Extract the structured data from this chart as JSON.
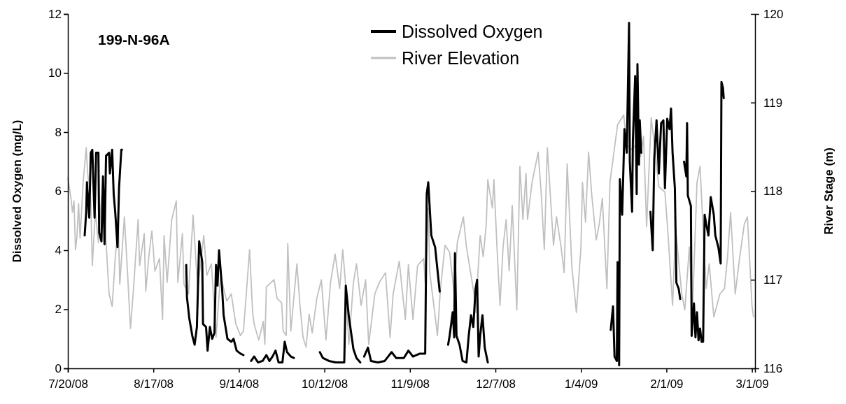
{
  "chart_data": {
    "type": "line",
    "title": "199-N-96A",
    "ylabel": "Dissolved Oxygen (mg/L)",
    "y2label": "River Stage (m)",
    "xlim": [
      "2008-07-20",
      "2009-03-02"
    ],
    "xticks": [
      {
        "value": "2008-07-20",
        "label": "7/20/08"
      },
      {
        "value": "2008-08-17",
        "label": "8/17/08"
      },
      {
        "value": "2008-09-14",
        "label": "9/14/08"
      },
      {
        "value": "2008-10-12",
        "label": "10/12/08"
      },
      {
        "value": "2008-11-09",
        "label": "11/9/08"
      },
      {
        "value": "2008-12-07",
        "label": "12/7/08"
      },
      {
        "value": "2009-01-04",
        "label": "1/4/09"
      },
      {
        "value": "2009-02-01",
        "label": "2/1/09"
      },
      {
        "value": "2009-03-01",
        "label": "3/1/09"
      }
    ],
    "ylim": [
      0,
      12
    ],
    "yticks": [
      0,
      2,
      4,
      6,
      8,
      10,
      12
    ],
    "y2lim": [
      116,
      120
    ],
    "y2ticks": [
      116,
      117,
      118,
      119,
      120
    ],
    "legend": "top",
    "grid": false,
    "series": [
      {
        "name": "River Elevation",
        "color": "#c0c0c0",
        "axis": "y2",
        "x": [
          "2008-07-20",
          "2008-07-21",
          "2008-07-21T12:00",
          "2008-07-22",
          "2008-07-22T12:00",
          "2008-07-23",
          "2008-07-23T12:00",
          "2008-07-24",
          "2008-07-25",
          "2008-07-26",
          "2008-07-26T12:00",
          "2008-07-27T12:00",
          "2008-07-28",
          "2008-07-29",
          "2008-07-30",
          "2008-07-30T12:00",
          "2008-07-31T12:00",
          "2008-08-01T12:00",
          "2008-08-02T12:00",
          "2008-08-03T12:00",
          "2008-08-04T12:00",
          "2008-08-05T12:00",
          "2008-08-06",
          "2008-08-07T12:00",
          "2008-08-08T12:00",
          "2008-08-09T12:00",
          "2008-08-10T12:00",
          "2008-08-12",
          "2008-08-12T12:00",
          "2008-08-14",
          "2008-08-14T12:00",
          "2008-08-15T12:00",
          "2008-08-16T12:00",
          "2008-08-17T12:00",
          "2008-08-19",
          "2008-08-20",
          "2008-08-20T12:00",
          "2008-08-21T12:00",
          "2008-08-23",
          "2008-08-24T12:00",
          "2008-08-25",
          "2008-08-26T12:00",
          "2008-08-27",
          "2008-08-28T12:00",
          "2008-08-30",
          "2008-08-31T12:00",
          "2008-09-02T12:00",
          "2008-09-03T12:00",
          "2008-09-05",
          "2008-09-06T12:00",
          "2008-09-08",
          "2008-09-10",
          "2008-09-11T12:00",
          "2008-09-13",
          "2008-09-14T12:00",
          "2008-09-15T12:00",
          "2008-09-17T12:00",
          "2008-09-18T12:00",
          "2008-09-19",
          "2008-09-20T12:00",
          "2008-09-22",
          "2008-09-22T12:00",
          "2008-09-23",
          "2008-09-25T12:00",
          "2008-09-26T12:00",
          "2008-09-28",
          "2008-09-28T12:00",
          "2008-09-29T12:00",
          "2008-09-30",
          "2008-10-01",
          "2008-10-03",
          "2008-10-04",
          "2008-10-05",
          "2008-10-06",
          "2008-10-07",
          "2008-10-08",
          "2008-10-09T12:00",
          "2008-10-11",
          "2008-10-12T12:00",
          "2008-10-14",
          "2008-10-15T12:00",
          "2008-10-17",
          "2008-10-18",
          "2008-10-19",
          "2008-10-20",
          "2008-10-21T12:00",
          "2008-10-22T12:00",
          "2008-10-24",
          "2008-10-25T12:00",
          "2008-10-26T12:00",
          "2008-10-28T12:00",
          "2008-10-30",
          "2008-11-01",
          "2008-11-02T12:00",
          "2008-11-03T12:00",
          "2008-11-05T12:00",
          "2008-11-07T12:00",
          "2008-11-08T12:00",
          "2008-11-10",
          "2008-11-11T12:00",
          "2008-11-13T12:00",
          "2008-11-14",
          "2008-11-15",
          "2008-11-15T12:00",
          "2008-11-17",
          "2008-11-18",
          "2008-11-19",
          "2008-11-20T12:00",
          "2008-11-22",
          "2008-11-23T12:00",
          "2008-11-24T12:00",
          "2008-11-26T12:00",
          "2008-11-27T12:00",
          "2008-11-30",
          "2008-11-30T12:00",
          "2008-12-02",
          "2008-12-03",
          "2008-12-04",
          "2008-12-04T12:00",
          "2008-12-06",
          "2008-12-06T12:00",
          "2008-12-07T12:00",
          "2008-12-08T12:00",
          "2008-12-09T12:00",
          "2008-12-10T12:00",
          "2008-12-11T12:00",
          "2008-12-12T12:00",
          "2008-12-14",
          "2008-12-15",
          "2008-12-16",
          "2008-12-17",
          "2008-12-17T12:00",
          "2008-12-19",
          "2008-12-21",
          "2008-12-22",
          "2008-12-23",
          "2008-12-24",
          "2008-12-26",
          "2008-12-27",
          "2008-12-28T12:00",
          "2008-12-29T12:00",
          "2008-12-30T12:00",
          "2009-01-01",
          "2009-01-02T12:00",
          "2009-01-04",
          "2009-01-04T12:00",
          "2009-01-05T12:00",
          "2009-01-06T12:00",
          "2009-01-07T12:00",
          "2009-01-09",
          "2009-01-10",
          "2009-01-11",
          "2009-01-12T12:00",
          "2009-01-13T12:00",
          "2009-01-15",
          "2009-01-16",
          "2009-01-18",
          "2009-01-19",
          "2009-01-20T12:00",
          "2009-01-22",
          "2009-01-23T12:00",
          "2009-01-24T12:00",
          "2009-01-25T12:00",
          "2009-01-27",
          "2009-01-28T12:00",
          "2009-01-29T12:00",
          "2009-01-31T12:00",
          "2009-02-01T12:00",
          "2009-02-03",
          "2009-02-04",
          "2009-02-06",
          "2009-02-07",
          "2009-02-08T12:00",
          "2009-02-09T12:00",
          "2009-02-11",
          "2009-02-12",
          "2009-02-13T12:00",
          "2009-02-14",
          "2009-02-15",
          "2009-02-16T12:00",
          "2009-02-18T12:00",
          "2009-02-20",
          "2009-02-21",
          "2009-02-22",
          "2009-02-23T12:00",
          "2009-02-25",
          "2009-02-26T12:00",
          "2009-02-27T12:00",
          "2009-03-01",
          "2009-03-01T12:00"
        ],
        "values": [
          118.15,
          117.92,
          117.76,
          117.89,
          117.34,
          117.5,
          117.86,
          117.47,
          118.1,
          118.49,
          118.2,
          117.89,
          117.16,
          117.76,
          117.42,
          117.68,
          118.15,
          117.42,
          116.84,
          116.7,
          117.24,
          117.63,
          116.95,
          117.71,
          117.1,
          116.45,
          116.9,
          117.68,
          117.16,
          117.52,
          116.87,
          117.26,
          117.55,
          117.1,
          117.24,
          116.55,
          117.5,
          116.97,
          117.68,
          117.89,
          116.97,
          117.52,
          116.95,
          116.84,
          117.73,
          116.9,
          117.5,
          117.05,
          117.18,
          116.35,
          117.05,
          116.76,
          116.84,
          116.5,
          116.37,
          116.42,
          117.34,
          116.63,
          116.5,
          116.32,
          116.53,
          116.27,
          116.92,
          117.0,
          116.79,
          116.74,
          116.42,
          116.37,
          117.41,
          116.42,
          117.18,
          116.71,
          116.35,
          116.24,
          116.61,
          116.4,
          116.79,
          117.0,
          116.32,
          116.97,
          117.29,
          116.9,
          117.34,
          116.92,
          116.27,
          116.97,
          117.18,
          116.71,
          117.0,
          116.27,
          116.84,
          116.97,
          117.08,
          116.35,
          116.84,
          117.21,
          116.55,
          117.17,
          116.55,
          117.16,
          117.24,
          116.97,
          117.81,
          117.08,
          116.66,
          116.37,
          116.9,
          117.39,
          117.31,
          116.84,
          117.42,
          117.71,
          117.37,
          116.84,
          116.63,
          117.5,
          117.26,
          117.63,
          118.13,
          117.81,
          118.13,
          117.37,
          116.71,
          117.37,
          117.68,
          117.1,
          117.84,
          116.66,
          118.28,
          117.68,
          118.2,
          117.68,
          118.1,
          118.44,
          117.97,
          117.34,
          118.49,
          117.39,
          117.71,
          117.37,
          117.08,
          118.31,
          117.16,
          116.63,
          117.37,
          118.1,
          117.65,
          118.44,
          117.97,
          117.45,
          117.63,
          117.92,
          116.9,
          118.1,
          118.49,
          118.75,
          118.86,
          118.52,
          118.47,
          118.52,
          118.39,
          118.62,
          117.6,
          118.83,
          118.39,
          118.05,
          117.99,
          117.52,
          116.71,
          117.58,
          116.84,
          116.66,
          117.37,
          116.63,
          118.1,
          118.28,
          117.21,
          116.9,
          117.18,
          116.58,
          116.84,
          116.9,
          117.26,
          117.76,
          116.84,
          117.26,
          117.63,
          117.71,
          116.71,
          116.58
        ]
      },
      {
        "name": "Dissolved Oxygen",
        "color": "#000000",
        "axis": "y",
        "x": [
          "2008-07-25T12:00",
          "2008-07-26",
          "2008-07-26T06:00",
          "2008-07-27",
          "2008-07-27T12:00",
          "2008-07-28",
          "2008-07-28T18:00",
          "2008-07-29T06:00",
          "2008-07-30",
          "2008-07-30T06:00",
          "2008-07-31",
          "2008-07-31T12:00",
          "2008-08-01",
          "2008-08-01T12:00",
          "2008-08-02T12:00",
          "2008-08-02T18:00",
          "2008-08-03T12:00",
          "2008-08-04",
          "2008-08-04T12:00",
          "2008-08-05T06:00",
          "2008-08-05T18:00",
          "2008-08-06T12:00",
          "2008-08-06T18:00",
          "2008-08-15",
          "2008-08-27T18:00",
          "2008-08-28",
          "2008-08-28T18:00",
          "2008-08-29T18:00",
          "2008-08-30T12:00",
          "2008-08-31T06:00",
          "2008-09-01",
          "2008-09-02",
          "2008-09-02T06:00",
          "2008-09-03T06:00",
          "2008-09-03T18:00",
          "2008-09-04T12:00",
          "2008-09-05T06:00",
          "2008-09-06",
          "2008-09-06T12:00",
          "2008-09-07",
          "2008-09-07T12:00",
          "2008-09-08T12:00",
          "2008-09-09",
          "2008-09-10T06:00",
          "2008-09-11T12:00",
          "2008-09-12T06:00",
          "2008-09-13T06:00",
          "2008-09-14T12:00",
          "2008-09-15T12:00",
          "2008-09-16T18:00",
          "2008-09-18",
          "2008-09-19",
          "2008-09-20T06:00",
          "2008-09-21T18:00",
          "2008-09-23",
          "2008-09-24",
          "2008-09-25",
          "2008-09-26",
          "2008-09-27",
          "2008-09-28T06:00",
          "2008-09-29",
          "2008-09-29T18:00",
          "2008-10-01",
          "2008-10-02",
          "2008-10-07",
          "2008-10-10T12:00",
          "2008-10-11T12:00",
          "2008-10-13T12:00",
          "2008-10-15T18:00",
          "2008-10-18T12:00",
          "2008-10-19",
          "2008-10-20",
          "2008-10-21T12:00",
          "2008-10-22T12:00",
          "2008-10-23T18:00",
          "2008-10-24T06:00",
          "2008-10-25",
          "2008-10-26T06:00",
          "2008-10-27T06:00",
          "2008-10-29T12:00",
          "2008-10-31T18:00",
          "2008-11-03",
          "2008-11-04T12:00",
          "2008-11-07",
          "2008-11-08T12:00",
          "2008-11-10",
          "2008-11-12T06:00",
          "2008-11-14",
          "2008-11-14T12:00",
          "2008-11-15",
          "2008-11-16",
          "2008-11-17T06:00",
          "2008-11-18T18:00",
          "2008-11-20",
          "2008-11-21T12:00",
          "2008-11-22",
          "2008-11-23",
          "2008-11-23T12:00",
          "2008-11-23T18:00",
          "2008-11-24T06:00",
          "2008-11-25T06:00",
          "2008-11-26T06:00",
          "2008-11-27T12:00",
          "2008-11-28T06:00",
          "2008-11-29",
          "2008-11-29T18:00",
          "2008-11-30T12:00",
          "2008-12-01",
          "2008-12-01T12:00",
          "2008-12-02",
          "2008-12-02T18:00",
          "2008-12-03T12:00",
          "2008-12-04T12:00",
          "2008-12-20",
          "2009-01-13T18:00",
          "2009-01-14T12:00",
          "2009-01-15",
          "2009-01-15T18:00",
          "2009-01-16",
          "2009-01-16T12:00",
          "2009-01-16T18:00",
          "2009-01-17T12:00",
          "2009-01-18T06:00",
          "2009-01-19",
          "2009-01-19T18:00",
          "2009-01-20",
          "2009-01-20T18:00",
          "2009-01-21",
          "2009-01-21T18:00",
          "2009-01-22T06:00",
          "2009-01-22T12:00",
          "2009-01-23",
          "2009-01-23T06:00",
          "2009-01-23T18:00",
          "2009-01-25",
          "2009-01-26T18:00",
          "2009-01-27T12:00",
          "2009-01-28",
          "2009-01-28T18:00",
          "2009-01-29T12:00",
          "2009-01-30T06:00",
          "2009-01-31",
          "2009-01-31T12:00",
          "2009-02-01T06:00",
          "2009-02-02",
          "2009-02-02T12:00",
          "2009-02-03",
          "2009-02-03T18:00",
          "2009-02-04T06:00",
          "2009-02-05",
          "2009-02-05T12:00",
          "2009-02-06",
          "2009-02-06T18:00",
          "2009-02-07T12:00",
          "2009-02-07T18:00",
          "2009-02-08",
          "2009-02-09",
          "2009-02-09T06:00",
          "2009-02-10",
          "2009-02-10T12:00",
          "2009-02-11",
          "2009-02-11T12:00",
          "2009-02-12",
          "2009-02-12T12:00",
          "2009-02-13",
          "2009-02-13T12:00",
          "2009-02-14",
          "2009-02-14T18:00",
          "2009-02-15T12:00",
          "2009-02-16T12:00",
          "2009-02-17",
          "2009-02-18",
          "2009-02-18T18:00",
          "2009-02-19",
          "2009-02-19T12:00",
          "2009-02-19T18:00"
        ],
        "values": [
          4.5,
          5.3,
          6.3,
          5.1,
          7.3,
          7.4,
          5.1,
          7.3,
          7.3,
          4.6,
          4.3,
          6.5,
          4.2,
          7.2,
          7.3,
          6.6,
          7.4,
          5.9,
          5.3,
          4.1,
          6.1,
          7.4,
          7.4,
          null,
          3.5,
          2.4,
          1.7,
          1.1,
          0.8,
          1.4,
          4.3,
          3.6,
          1.5,
          1.4,
          0.6,
          1.4,
          1.0,
          1.2,
          3.5,
          2.8,
          4.0,
          2.7,
          1.8,
          1.0,
          0.9,
          1.0,
          0.6,
          0.5,
          0.45,
          null,
          0.25,
          0.4,
          0.2,
          0.25,
          0.45,
          0.25,
          0.4,
          0.6,
          0.2,
          0.2,
          0.9,
          0.55,
          0.4,
          0.35,
          null,
          0.55,
          0.35,
          0.25,
          0.2,
          0.2,
          2.8,
          1.75,
          0.65,
          0.35,
          0.2,
          null,
          0.4,
          0.7,
          0.25,
          0.2,
          0.25,
          0.55,
          0.35,
          0.35,
          0.6,
          0.4,
          0.5,
          0.5,
          5.9,
          6.3,
          4.5,
          4.1,
          2.6,
          null,
          0.8,
          1.1,
          1.9,
          1.05,
          3.9,
          1.1,
          0.8,
          0.25,
          0.2,
          1.1,
          1.8,
          1.4,
          2.7,
          3.0,
          0.4,
          1.1,
          1.8,
          0.7,
          0.2,
          null,
          1.3,
          2.1,
          0.4,
          0.25,
          3.6,
          0.1,
          6.4,
          5.2,
          8.1,
          7.3,
          11.7,
          7.0,
          5.3,
          7.7,
          9.9,
          5.9,
          10.3,
          6.9,
          8.4,
          7.3,
          null,
          5.3,
          4.0,
          7.1,
          8.4,
          6.6,
          8.3,
          8.4,
          6.1,
          8.45,
          8.1,
          8.8,
          7.3,
          6.1,
          2.9,
          2.7,
          2.35,
          null,
          7.0,
          6.5,
          8.3,
          5.85,
          5.5,
          1.1,
          2.2,
          1.05,
          1.9,
          0.95,
          1.35,
          0.9,
          0.9,
          5.2,
          4.9,
          4.5,
          5.8,
          5.2,
          4.5,
          4.1,
          3.55,
          9.7,
          9.5,
          9.15
        ]
      }
    ]
  }
}
